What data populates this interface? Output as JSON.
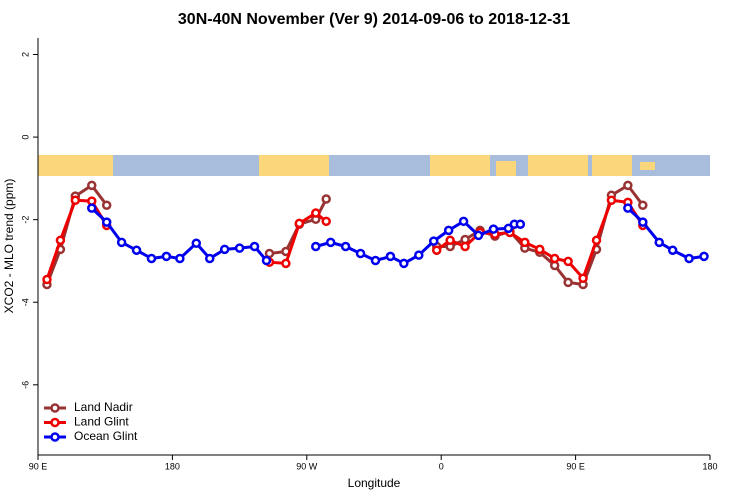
{
  "chart_data": {
    "type": "line",
    "title": "30N-40N November (Ver 9)   2014-09-06 to 2018-12-31",
    "x_label": "Longitude",
    "y_label": "XCO2 - MLO trend (ppm)",
    "xlim": [
      90,
      540
    ],
    "ylim": [
      -7.7,
      2.4
    ],
    "xticks": [
      {
        "value": 90,
        "label": "90 E"
      },
      180,
      {
        "value": 270,
        "label": "90 W"
      },
      {
        "value": 360,
        "label": "0"
      },
      {
        "value": 450,
        "label": "90 E"
      },
      {
        "value": 540,
        "label": "180"
      }
    ],
    "yticks": [
      2,
      0,
      -2,
      -4,
      -6
    ],
    "legend": "bottom-left",
    "series": [
      {
        "name": "Land Nadir",
        "color": "#993333",
        "x": [
          96,
          105,
          115,
          126,
          136,
          null,
          245,
          256,
          265,
          276,
          283,
          null,
          357,
          366,
          376,
          386,
          396,
          406,
          416,
          426,
          436,
          445,
          455,
          464,
          474,
          485,
          495
        ],
        "values": [
          -3.57,
          -2.72,
          -1.43,
          -1.17,
          -1.65,
          null,
          -2.82,
          -2.77,
          -2.11,
          -1.99,
          -1.5,
          null,
          -2.65,
          -2.65,
          -2.48,
          -2.26,
          -2.4,
          -2.28,
          -2.69,
          -2.79,
          -3.11,
          -3.52,
          -3.57,
          -2.72,
          -1.41,
          -1.17,
          -1.65
        ]
      },
      {
        "name": "Land Glint",
        "color": "#ee0000",
        "x": [
          96,
          105,
          115,
          126,
          136,
          null,
          245,
          256,
          265,
          276,
          283,
          null,
          357,
          366,
          376,
          386,
          396,
          406,
          416,
          426,
          436,
          445,
          455,
          464,
          474,
          485,
          495
        ],
        "values": [
          -3.45,
          -2.5,
          -1.53,
          -1.55,
          -2.14,
          null,
          -3.03,
          -3.06,
          -2.09,
          -1.84,
          -2.04,
          null,
          -2.74,
          -2.5,
          -2.65,
          -2.31,
          -2.35,
          -2.31,
          -2.55,
          -2.72,
          -2.94,
          -3.01,
          -3.42,
          -2.5,
          -1.53,
          -1.58,
          -2.14
        ]
      },
      {
        "name": "Ocean Glint",
        "color": "#0000ee",
        "x": [
          126,
          136,
          146,
          156,
          166,
          176,
          185,
          196,
          205,
          215,
          225,
          235,
          243,
          null,
          276,
          286,
          296,
          306,
          316,
          326,
          335,
          345,
          355,
          365,
          375,
          385,
          395,
          405,
          409,
          413,
          null,
          485,
          495,
          506,
          515,
          526,
          536
        ],
        "values": [
          -1.72,
          -2.06,
          -2.55,
          -2.74,
          -2.94,
          -2.89,
          -2.94,
          -2.57,
          -2.94,
          -2.72,
          -2.69,
          -2.65,
          -2.99,
          null,
          -2.65,
          -2.55,
          -2.65,
          -2.82,
          -2.99,
          -2.89,
          -3.06,
          -2.86,
          -2.52,
          -2.26,
          -2.04,
          -2.38,
          -2.23,
          -2.21,
          -2.11,
          -2.11,
          null,
          -1.72,
          -2.06,
          -2.55,
          -2.74,
          -2.94,
          -2.89
        ]
      }
    ]
  }
}
